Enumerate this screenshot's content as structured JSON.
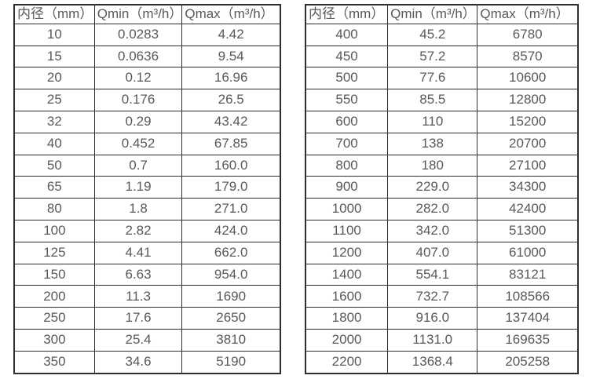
{
  "colors": {
    "background": "#ffffff",
    "border": "#2e2e2e",
    "text": "#595959"
  },
  "chart_data": [
    {
      "type": "table",
      "title": "",
      "headers": [
        "内径（mm）",
        "Qmin（m³/h）",
        "Qmax（m³/h）"
      ],
      "rows": [
        [
          "10",
          "0.0283",
          "4.42"
        ],
        [
          "15",
          "0.0636",
          "9.54"
        ],
        [
          "20",
          "0.12",
          "16.96"
        ],
        [
          "25",
          "0.176",
          "26.5"
        ],
        [
          "32",
          "0.29",
          "43.42"
        ],
        [
          "40",
          "0.452",
          "67.85"
        ],
        [
          "50",
          "0.7",
          "160.0"
        ],
        [
          "65",
          "1.19",
          "179.0"
        ],
        [
          "80",
          "1.8",
          "271.0"
        ],
        [
          "100",
          "2.82",
          "424.0"
        ],
        [
          "125",
          "4.41",
          "662.0"
        ],
        [
          "150",
          "6.63",
          "954.0"
        ],
        [
          "200",
          "11.3",
          "1690"
        ],
        [
          "250",
          "17.6",
          "2650"
        ],
        [
          "300",
          "25.4",
          "3810"
        ],
        [
          "350",
          "34.6",
          "5190"
        ]
      ]
    },
    {
      "type": "table",
      "title": "",
      "headers": [
        "内径（mm）",
        "Qmin（m³/h）",
        "Qmax（m³/h）"
      ],
      "rows": [
        [
          "400",
          "45.2",
          "6780"
        ],
        [
          "450",
          "57.2",
          "8570"
        ],
        [
          "500",
          "77.6",
          "10600"
        ],
        [
          "550",
          "85.5",
          "12800"
        ],
        [
          "600",
          "110",
          "15200"
        ],
        [
          "700",
          "138",
          "20700"
        ],
        [
          "800",
          "180",
          "27100"
        ],
        [
          "900",
          "229.0",
          "34300"
        ],
        [
          "1000",
          "282.0",
          "42400"
        ],
        [
          "1100",
          "342.0",
          "51300"
        ],
        [
          "1200",
          "407.0",
          "61000"
        ],
        [
          "1400",
          "554.1",
          "83121"
        ],
        [
          "1600",
          "732.7",
          "108566"
        ],
        [
          "1800",
          "916.0",
          "137404"
        ],
        [
          "2000",
          "1131.0",
          "169635"
        ],
        [
          "2200",
          "1368.4",
          "205258"
        ]
      ]
    }
  ]
}
